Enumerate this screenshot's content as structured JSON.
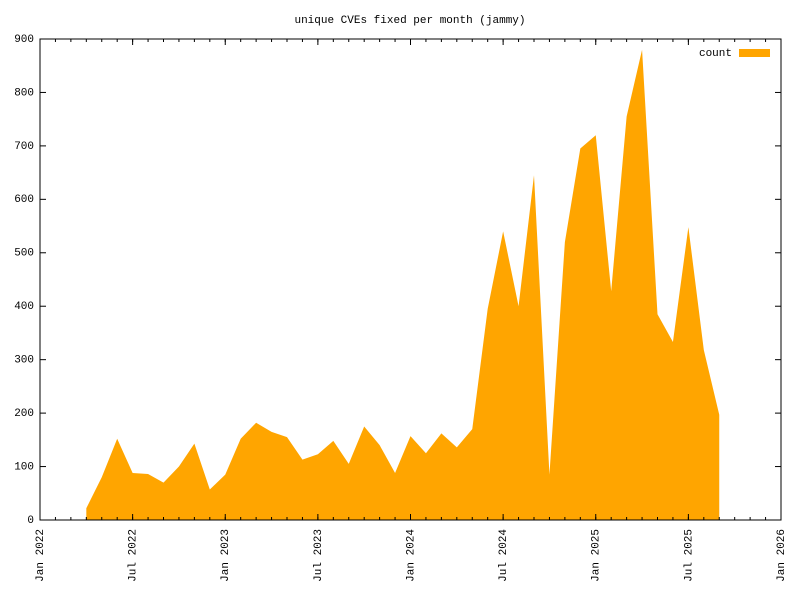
{
  "chart_data": {
    "type": "area",
    "title": "unique CVEs fixed per month (jammy)",
    "x": [
      "2022-04",
      "2022-05",
      "2022-06",
      "2022-07",
      "2022-08",
      "2022-09",
      "2022-10",
      "2022-11",
      "2022-12",
      "2023-01",
      "2023-02",
      "2023-03",
      "2023-04",
      "2023-05",
      "2023-06",
      "2023-07",
      "2023-08",
      "2023-09",
      "2023-10",
      "2023-11",
      "2023-12",
      "2024-01",
      "2024-02",
      "2024-03",
      "2024-04",
      "2024-05",
      "2024-06",
      "2024-07",
      "2024-08",
      "2024-09",
      "2024-10",
      "2024-11",
      "2024-12",
      "2025-01",
      "2025-02",
      "2025-03",
      "2025-04",
      "2025-05",
      "2025-06",
      "2025-07",
      "2025-08",
      "2025-09"
    ],
    "series": [
      {
        "name": "count",
        "color": "#ffa500",
        "values": [
          22,
          80,
          152,
          88,
          86,
          70,
          100,
          143,
          57,
          85,
          152,
          182,
          165,
          155,
          113,
          123,
          148,
          105,
          175,
          140,
          88,
          157,
          125,
          162,
          136,
          170,
          395,
          540,
          400,
          645,
          85,
          520,
          695,
          720,
          428,
          755,
          880,
          385,
          333,
          548,
          318,
          197
        ]
      }
    ],
    "xlim": [
      "2022-01",
      "2026-01"
    ],
    "xticks": [
      {
        "value": "2022-01",
        "label": "Jan 2022"
      },
      {
        "value": "2022-07",
        "label": "Jul 2022"
      },
      {
        "value": "2023-01",
        "label": "Jan 2023"
      },
      {
        "value": "2023-07",
        "label": "Jul 2023"
      },
      {
        "value": "2024-01",
        "label": "Jan 2024"
      },
      {
        "value": "2024-07",
        "label": "Jul 2024"
      },
      {
        "value": "2025-01",
        "label": "Jan 2025"
      },
      {
        "value": "2025-07",
        "label": "Jul 2025"
      },
      {
        "value": "2026-01",
        "label": "Jan 2026"
      }
    ],
    "ylim": [
      0,
      900
    ],
    "yticks": [
      0,
      100,
      200,
      300,
      400,
      500,
      600,
      700,
      800,
      900
    ],
    "legend": "top-right"
  }
}
